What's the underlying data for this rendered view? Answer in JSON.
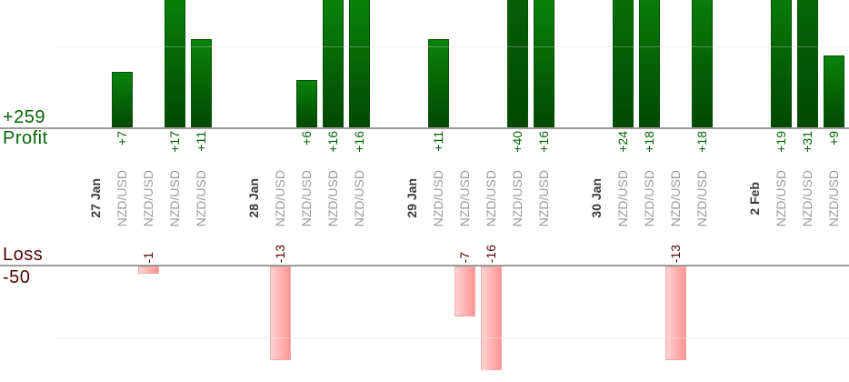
{
  "labels": {
    "total_profit": "+259",
    "profit": "Profit",
    "loss": "Loss",
    "total_loss": "-50"
  },
  "chart_data": {
    "type": "bar",
    "title": "",
    "description": "Per-trade profit and loss bars grouped by trade date; profits plotted upward from the Profit baseline, losses plotted downward from the Loss baseline",
    "symbol": "NZD/USD",
    "groups": [
      {
        "date": "27 Jan",
        "trades": [
          {
            "symbol": "NZD/USD",
            "label": "+7",
            "value": 7
          },
          {
            "symbol": "NZD/USD",
            "label": "-1",
            "value": -1
          },
          {
            "symbol": "NZD/USD",
            "label": "+17",
            "value": 17
          },
          {
            "symbol": "NZD/USD",
            "label": "+11",
            "value": 11
          }
        ]
      },
      {
        "date": "28 Jan",
        "trades": [
          {
            "symbol": "NZD/USD",
            "label": "-13",
            "value": -13
          },
          {
            "symbol": "NZD/USD",
            "label": "+6",
            "value": 6
          },
          {
            "symbol": "NZD/USD",
            "label": "+16",
            "value": 16
          },
          {
            "symbol": "NZD/USD",
            "label": "+16",
            "value": 16
          }
        ]
      },
      {
        "date": "29 Jan",
        "trades": [
          {
            "symbol": "NZD/USD",
            "label": "+11",
            "value": 11
          },
          {
            "symbol": "NZD/USD",
            "label": "-7",
            "value": -7
          },
          {
            "symbol": "NZD/USD",
            "label": "-16",
            "value": -16
          },
          {
            "symbol": "NZD/USD",
            "label": "+40",
            "value": 40
          },
          {
            "symbol": "NZD/USD",
            "label": "+16",
            "value": 16
          }
        ]
      },
      {
        "date": "30 Jan",
        "trades": [
          {
            "symbol": "NZD/USD",
            "label": "+24",
            "value": 24
          },
          {
            "symbol": "NZD/USD",
            "label": "+18",
            "value": 18
          },
          {
            "symbol": "NZD/USD",
            "label": "-13",
            "value": -13
          },
          {
            "symbol": "NZD/USD",
            "label": "+18",
            "value": 18
          }
        ]
      },
      {
        "date": "2 Feb",
        "trades": [
          {
            "symbol": "NZD/USD",
            "label": "+19",
            "value": 19
          },
          {
            "symbol": "NZD/USD",
            "label": "+31",
            "value": 31
          },
          {
            "symbol": "NZD/USD",
            "label": "+9",
            "value": 9
          }
        ]
      }
    ],
    "totals": {
      "profit": 259,
      "loss": -50
    },
    "profit_axis": {
      "baseline": 0,
      "gridline_at": 10,
      "visible_max": 15.8,
      "bars_clipped_at_top": true
    },
    "loss_axis": {
      "baseline": 0,
      "gridline_at": -10,
      "visible_min": -14.4,
      "largest_bar_clipped_at_bottom": true
    },
    "legend": "none",
    "grid": "faint-horizontal"
  },
  "colors": {
    "profit_text": "#056605",
    "loss_text": "#4f0505",
    "date_text": "#3a3a3a",
    "symbol_text": "#9a9a9a",
    "axis_line": "#9a9a9a",
    "gridline": "#efefef",
    "bar_green_top": "#0a830a",
    "bar_green_bottom": "#024802",
    "bar_pink_light": "#ffd3d3",
    "bar_pink_dark": "#ff9494"
  }
}
